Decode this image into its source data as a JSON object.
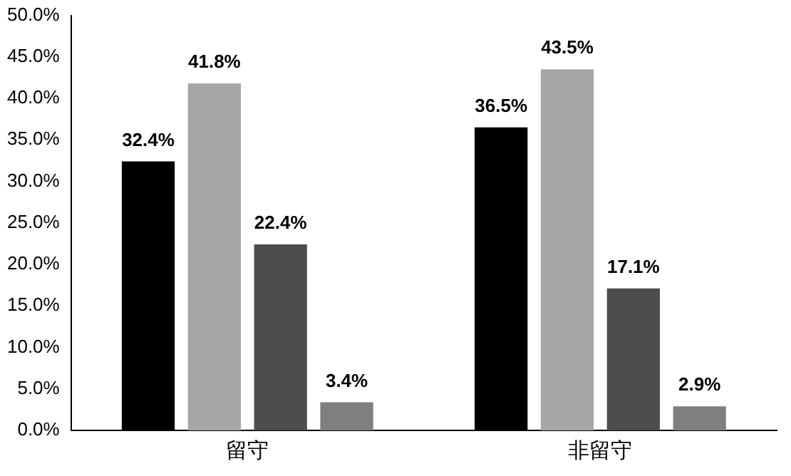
{
  "chart_data": {
    "type": "bar",
    "categories": [
      "留守",
      "非留守"
    ],
    "series": [
      {
        "color": "#000000",
        "values": [
          32.4,
          36.5
        ],
        "value_labels": [
          "32.4%",
          "36.5%"
        ]
      },
      {
        "color": "#a6a6a6",
        "values": [
          41.8,
          43.5
        ],
        "value_labels": [
          "41.8%",
          "43.5%"
        ]
      },
      {
        "color": "#4d4d4d",
        "values": [
          22.4,
          17.1
        ],
        "value_labels": [
          "22.4%",
          "17.1%"
        ]
      },
      {
        "color": "#7f7f7f",
        "values": [
          3.4,
          2.9
        ],
        "value_labels": [
          "3.4%",
          "2.9%"
        ]
      }
    ],
    "ylim": [
      0,
      50
    ],
    "yticks": [
      {
        "value": 0,
        "label": "0.0%"
      },
      {
        "value": 5,
        "label": "5.0%"
      },
      {
        "value": 10,
        "label": "10.0%"
      },
      {
        "value": 15,
        "label": "15.0%"
      },
      {
        "value": 20,
        "label": "20.0%"
      },
      {
        "value": 25,
        "label": "25.0%"
      },
      {
        "value": 30,
        "label": "30.0%"
      },
      {
        "value": 35,
        "label": "35.0%"
      },
      {
        "value": 40,
        "label": "40.0%"
      },
      {
        "value": 45,
        "label": "45.0%"
      },
      {
        "value": 50,
        "label": "50.0%"
      }
    ],
    "grid": false,
    "legend": false
  }
}
